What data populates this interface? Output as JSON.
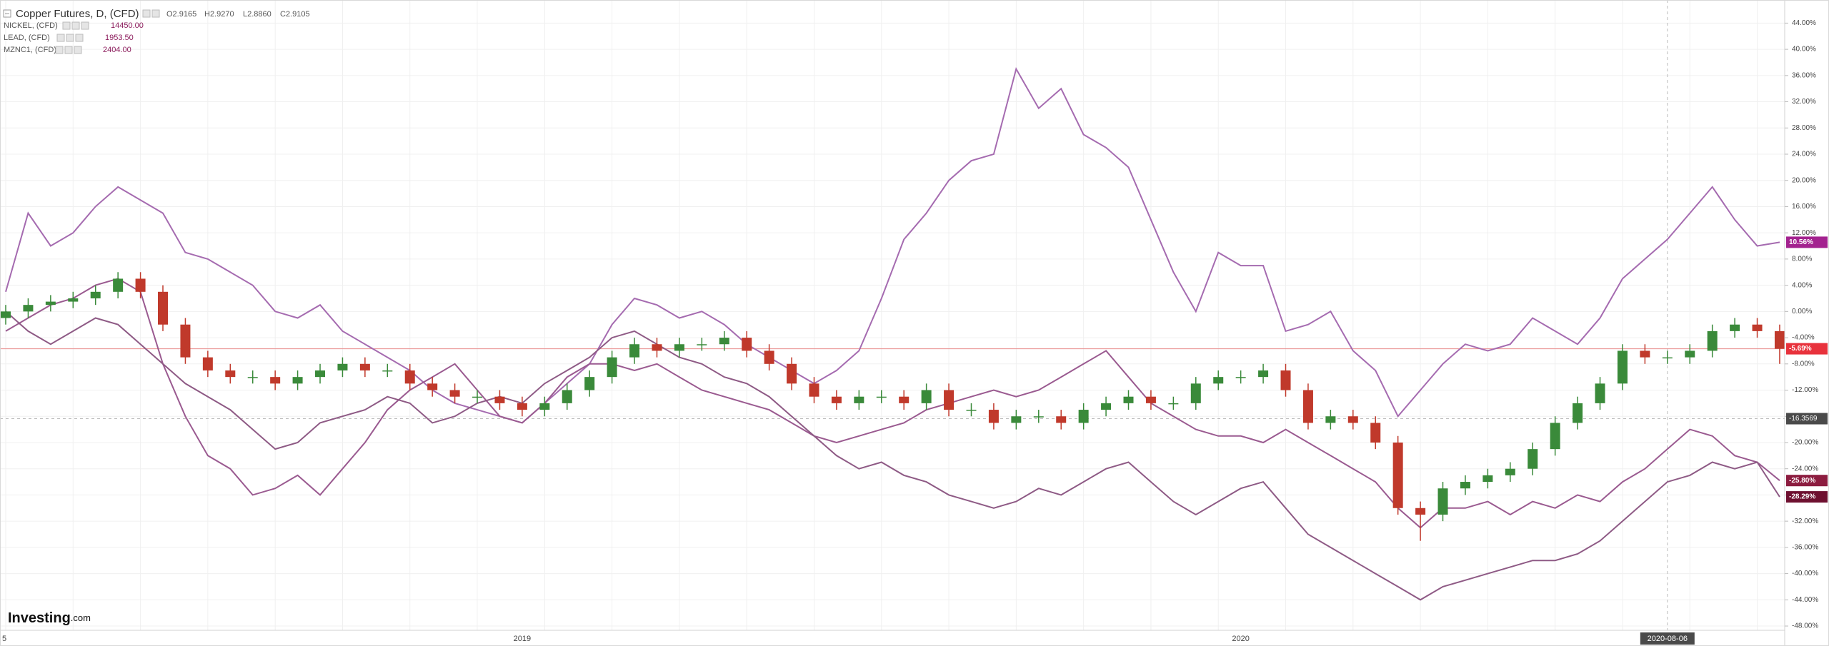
{
  "chart_data": {
    "type": "candlestick",
    "categories": [
      "5",
      null,
      null,
      null,
      null,
      null,
      null,
      null,
      null,
      null,
      null,
      null,
      null,
      null,
      null,
      null,
      null,
      null,
      null,
      null,
      null,
      null,
      null,
      "2019",
      null,
      null,
      null,
      null,
      null,
      null,
      null,
      null,
      null,
      null,
      null,
      null,
      null,
      null,
      null,
      null,
      null,
      null,
      null,
      null,
      null,
      null,
      null,
      null,
      null,
      null,
      null,
      null,
      null,
      null,
      null,
      "2020",
      null,
      null,
      null,
      null,
      null,
      null,
      null,
      null,
      null,
      null,
      null,
      null,
      null,
      null,
      null,
      null,
      null,
      null,
      "2020-08-06",
      null,
      null,
      null,
      null,
      null
    ],
    "ylim": [
      -48.65,
      47.2
    ],
    "yticks": [
      {
        "value": 44,
        "label": "44.00%"
      },
      {
        "value": 40,
        "label": "40.00%"
      },
      {
        "value": 36,
        "label": "36.00%"
      },
      {
        "value": 32,
        "label": "32.00%"
      },
      {
        "value": 28,
        "label": "28.00%"
      },
      {
        "value": 24,
        "label": "24.00%"
      },
      {
        "value": 20,
        "label": "20.00%"
      },
      {
        "value": 16,
        "label": "16.00%"
      },
      {
        "value": 12,
        "label": "12.00%"
      },
      {
        "value": 8,
        "label": "8.00%"
      },
      {
        "value": 4,
        "label": "4.00%"
      },
      {
        "value": 0,
        "label": "0.00%"
      },
      {
        "value": -4,
        "label": "-4.00%"
      },
      {
        "value": -8,
        "label": "-8.00%"
      },
      {
        "value": -12,
        "label": "-12.00%"
      },
      {
        "value": -16,
        "label": "-16.00%"
      },
      {
        "value": -20,
        "label": "-20.00%"
      },
      {
        "value": -24,
        "label": "-24.00%"
      },
      {
        "value": -28,
        "label": "-28.00%"
      },
      {
        "value": -32,
        "label": "-32.00%"
      },
      {
        "value": -36,
        "label": "-36.00%"
      },
      {
        "value": -40,
        "label": "-40.00%"
      },
      {
        "value": -44,
        "label": "-44.00%"
      },
      {
        "value": -48,
        "label": "-48.00%"
      }
    ],
    "grid": true,
    "crosshair": {
      "x": "2020-08-06",
      "y": -16.3569
    },
    "logo": {
      "brand": "Investing",
      "suffix": ".com"
    },
    "series": [
      {
        "name": "Copper Futures, D, (CFD)",
        "type": "candlestick",
        "header": [
          "O2.9165",
          "H2.9270",
          "L2.8860",
          "C2.9105"
        ],
        "up_color": "#3a8a3a",
        "down_color": "#c0392b",
        "label_color": "#e8323c",
        "last_label": "-5.69%",
        "open": [
          -1,
          0,
          1,
          1.5,
          2,
          3,
          5,
          3,
          -2,
          -7,
          -9,
          -10,
          -10,
          -11,
          -10,
          -9,
          -8,
          -9,
          -9,
          -11,
          -12,
          -13,
          -13,
          -14,
          -15,
          -14,
          -12,
          -10,
          -7,
          -5,
          -6,
          -5,
          -5,
          -4,
          -6,
          -8,
          -11,
          -13,
          -14,
          -13,
          -13,
          -14,
          -12,
          -15,
          -15,
          -17,
          -16,
          -16,
          -17,
          -15,
          -14,
          -13,
          -14,
          -14,
          -11,
          -10,
          -10,
          -9,
          -12,
          -17,
          -16,
          -17,
          -20,
          -30,
          -31,
          -27,
          -26,
          -25,
          -24,
          -21,
          -17,
          -14,
          -11,
          -6,
          -7,
          -7,
          -6,
          -3,
          -2,
          -3
        ],
        "high": [
          1,
          2,
          2.5,
          3,
          4,
          6,
          6,
          4,
          -1,
          -6,
          -8,
          -9,
          -9,
          -9,
          -8,
          -7,
          -7,
          -8,
          -8,
          -10,
          -11,
          -12,
          -12,
          -13,
          -13,
          -11,
          -9,
          -6,
          -4,
          -4,
          -4,
          -4,
          -3,
          -3,
          -5,
          -7,
          -10,
          -12,
          -12,
          -12,
          -12,
          -11,
          -11,
          -14,
          -14,
          -15,
          -15,
          -15,
          -14,
          -13,
          -12,
          -12,
          -13,
          -10,
          -9,
          -9,
          -8,
          -8,
          -11,
          -15,
          -15,
          -16,
          -19,
          -29,
          -26,
          -25,
          -24,
          -23,
          -20,
          -16,
          -13,
          -10,
          -5,
          -5,
          -6,
          -5,
          -2,
          -1,
          -1,
          -2
        ],
        "low": [
          -2,
          -1,
          0,
          0.5,
          1,
          2,
          2,
          -3,
          -8,
          -10,
          -11,
          -11,
          -12,
          -12,
          -11,
          -10,
          -10,
          -10,
          -12,
          -13,
          -14,
          -14,
          -15,
          -16,
          -16,
          -15,
          -13,
          -11,
          -8,
          -7,
          -7,
          -6,
          -6,
          -7,
          -9,
          -12,
          -14,
          -15,
          -15,
          -14,
          -15,
          -15,
          -16,
          -16,
          -18,
          -18,
          -17,
          -18,
          -18,
          -16,
          -15,
          -15,
          -15,
          -15,
          -12,
          -11,
          -11,
          -13,
          -18,
          -18,
          -18,
          -21,
          -31,
          -35,
          -32,
          -28,
          -27,
          -26,
          -25,
          -22,
          -18,
          -15,
          -12,
          -8,
          -8,
          -8,
          -7,
          -4,
          -4,
          -8
        ],
        "close": [
          0,
          1,
          1.5,
          2,
          3,
          5,
          3,
          -2,
          -7,
          -9,
          -10,
          -10,
          -11,
          -10,
          -9,
          -8,
          -9,
          -9,
          -11,
          -12,
          -13,
          -13,
          -14,
          -15,
          -14,
          -12,
          -10,
          -7,
          -5,
          -6,
          -5,
          -5,
          -4,
          -6,
          -8,
          -11,
          -13,
          -14,
          -13,
          -13,
          -14,
          -12,
          -15,
          -15,
          -17,
          -16,
          -16,
          -17,
          -15,
          -14,
          -13,
          -14,
          -14,
          -11,
          -10,
          -10,
          -9,
          -12,
          -17,
          -16,
          -17,
          -20,
          -30,
          -31,
          -27,
          -26,
          -25,
          -24,
          -21,
          -17,
          -14,
          -11,
          -6,
          -7,
          -7,
          -6,
          -3,
          -2,
          -3,
          -5.69
        ]
      },
      {
        "name": "NICKEL, (CFD)",
        "type": "line",
        "price": "14450.00",
        "color": "#a56bb0",
        "label_color": "#a3228f",
        "last_label": "10.56%",
        "values": [
          3,
          15,
          10,
          12,
          16,
          19,
          17,
          15,
          9,
          8,
          6,
          4,
          0,
          -1,
          1,
          -3,
          -5,
          -7,
          -9,
          -12,
          -14,
          -15,
          -16,
          -17,
          -14,
          -11,
          -8,
          -2,
          2,
          1,
          -1,
          0,
          -2,
          -5,
          -7,
          -9,
          -11,
          -9,
          -6,
          2,
          11,
          15,
          20,
          23,
          24,
          37,
          31,
          34,
          27,
          25,
          22,
          14,
          6,
          0,
          9,
          7,
          7,
          -3,
          -2,
          0,
          -6,
          -9,
          -16,
          -12,
          -8,
          -5,
          -6,
          -5,
          -1,
          -3,
          -5,
          -1,
          5,
          8,
          11,
          15,
          19,
          14,
          10,
          10.56
        ]
      },
      {
        "name": "LEAD, (CFD)",
        "type": "line",
        "price": "1953.50",
        "color": "#9a5a90",
        "label_color": "#8c1c3f",
        "last_label": "-25.80%",
        "values": [
          -3,
          -1,
          1,
          2,
          4,
          5,
          3,
          -8,
          -16,
          -22,
          -24,
          -28,
          -27,
          -25,
          -28,
          -24,
          -20,
          -15,
          -12,
          -10,
          -8,
          -12,
          -16,
          -17,
          -14,
          -10,
          -8,
          -8,
          -9,
          -8,
          -10,
          -12,
          -13,
          -14,
          -15,
          -17,
          -19,
          -20,
          -19,
          -18,
          -17,
          -15,
          -14,
          -13,
          -12,
          -13,
          -12,
          -10,
          -8,
          -6,
          -10,
          -14,
          -16,
          -18,
          -19,
          -19,
          -20,
          -18,
          -20,
          -22,
          -24,
          -26,
          -30,
          -33,
          -30,
          -30,
          -29,
          -31,
          -29,
          -30,
          -28,
          -29,
          -26,
          -24,
          -21,
          -18,
          -19,
          -22,
          -23,
          -25.8
        ]
      },
      {
        "name": "MZNC1, (CFD)",
        "type": "line",
        "price": "2404.00",
        "color": "#8e5a85",
        "label_color": "#6e1030",
        "last_label": "-28.29%",
        "values": [
          0,
          -3,
          -5,
          -3,
          -1,
          -2,
          -5,
          -8,
          -11,
          -13,
          -15,
          -18,
          -21,
          -20,
          -17,
          -16,
          -15,
          -13,
          -14,
          -17,
          -16,
          -14,
          -13,
          -14,
          -11,
          -9,
          -7,
          -4,
          -3,
          -5,
          -7,
          -8,
          -10,
          -11,
          -13,
          -16,
          -19,
          -22,
          -24,
          -23,
          -25,
          -26,
          -28,
          -29,
          -30,
          -29,
          -27,
          -28,
          -26,
          -24,
          -23,
          -26,
          -29,
          -31,
          -29,
          -27,
          -26,
          -30,
          -34,
          -36,
          -38,
          -40,
          -42,
          -44,
          -42,
          -41,
          -40,
          -39,
          -38,
          -38,
          -37,
          -35,
          -32,
          -29,
          -26,
          -25,
          -23,
          -24,
          -23,
          -28.29
        ]
      }
    ]
  }
}
